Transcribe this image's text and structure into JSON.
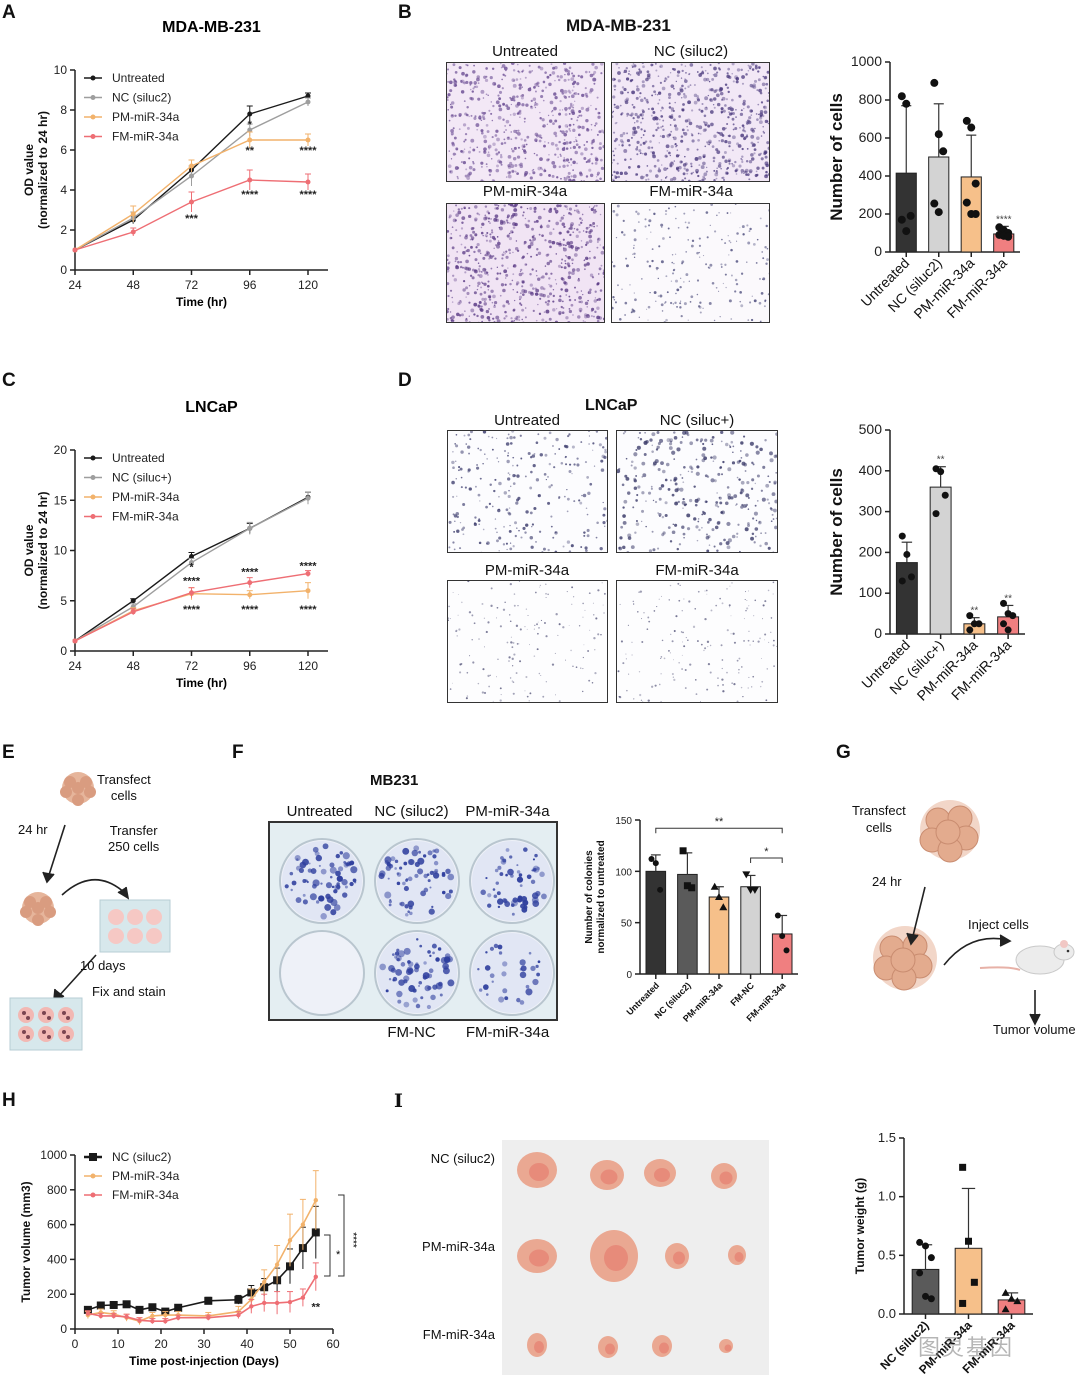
{
  "panels": {
    "A": {
      "letter": "A"
    },
    "B": {
      "letter": "B"
    },
    "C": {
      "letter": "C"
    },
    "D": {
      "letter": "D"
    },
    "E": {
      "letter": "E"
    },
    "F": {
      "letter": "F"
    },
    "G": {
      "letter": "G"
    },
    "H": {
      "letter": "H"
    },
    "I": {
      "letter": "I"
    }
  },
  "colors": {
    "untreated": "#1a1a1a",
    "nc": "#9e9e9e",
    "pm": "#f2b26b",
    "fm": "#ee6e74",
    "bar_untreated": "#333333",
    "bar_nc": "#d3d3d3",
    "bar_nc_dark": "#5a5a5a",
    "bar_pm": "#f6c08a",
    "bar_fm": "#f07f80"
  },
  "images": {
    "B": {
      "title": "MDA-MB-231",
      "labels": [
        "Untreated",
        "NC (siluc2)",
        "PM-miR-34a",
        "FM-miR-34a"
      ]
    },
    "D": {
      "title": "LNCaP",
      "labels": [
        "Untreated",
        "NC (siluc+)",
        "PM-miR-34a",
        "FM-miR-34a"
      ]
    },
    "F": {
      "title": "MB231",
      "top_labels": [
        "Untreated",
        "NC (siluc2)",
        "PM-miR-34a"
      ],
      "bottom_labels": [
        "FM-NC",
        "FM-miR-34a"
      ]
    },
    "I": {
      "row_labels": [
        "NC (siluc2)",
        "PM-miR-34a",
        "FM-miR-34a"
      ]
    }
  },
  "diagrams": {
    "E": {
      "transfect": "Transfect",
      "cells": "cells",
      "time1": "24 hr",
      "transfer1": "Transfer",
      "transfer2": "250 cells",
      "time2": "10 days",
      "fix": "Fix and stain"
    },
    "G": {
      "transfect": "Transfect",
      "cells": "cells",
      "time1": "24 hr",
      "inject": "Inject cells",
      "outcome": "Tumor volume"
    }
  },
  "watermark": "图灵基因",
  "chart_data": [
    {
      "id": "A",
      "type": "line",
      "title": "MDA-MB-231",
      "xlabel": "Time (hr)",
      "ylabel": "OD value (normalized to 24 hr)",
      "x": [
        24,
        48,
        72,
        96,
        120
      ],
      "xticks": [
        "24",
        "48",
        "72",
        "96",
        "120"
      ],
      "ylim": [
        0,
        10
      ],
      "yticks": [
        "0",
        "2",
        "4",
        "6",
        "8",
        "10"
      ],
      "legend_position": "upper-left",
      "series": [
        {
          "name": "Untreated",
          "values": [
            1.0,
            2.5,
            5.0,
            7.8,
            8.7
          ],
          "err": [
            0,
            0.2,
            0.2,
            0.4,
            0.15
          ]
        },
        {
          "name": "NC (siluc2)",
          "values": [
            1.0,
            2.6,
            4.7,
            7.0,
            8.4
          ],
          "err": [
            0,
            0.3,
            0.5,
            0.3,
            0.2
          ]
        },
        {
          "name": "PM-miR-34a",
          "values": [
            1.0,
            2.8,
            5.2,
            6.5,
            6.5
          ],
          "err": [
            0,
            0.4,
            0.3,
            0.4,
            0.3
          ]
        },
        {
          "name": "FM-miR-34a",
          "values": [
            1.0,
            1.9,
            3.4,
            4.5,
            4.4
          ],
          "err": [
            0,
            0.2,
            0.5,
            0.5,
            0.4
          ]
        }
      ],
      "annotations": [
        {
          "x": 96,
          "y": 7.3,
          "text": "*"
        },
        {
          "x": 96,
          "y": 6.0,
          "text": "**"
        },
        {
          "x": 120,
          "y": 6.0,
          "text": "****"
        },
        {
          "x": 72,
          "y": 2.6,
          "text": "***"
        },
        {
          "x": 96,
          "y": 3.8,
          "text": "****"
        },
        {
          "x": 120,
          "y": 3.8,
          "text": "****"
        }
      ]
    },
    {
      "id": "B",
      "type": "bar",
      "xlabel": "",
      "ylabel": "Number of cells",
      "categories": [
        "Untreated",
        "NC (siluc2)",
        "PM-miR-34a",
        "FM-miR-34a"
      ],
      "values": [
        415,
        500,
        395,
        95
      ],
      "err": [
        355,
        280,
        220,
        40
      ],
      "points": [
        [
          820,
          780,
          190,
          170,
          110
        ],
        [
          890,
          620,
          530,
          255,
          210
        ],
        [
          690,
          655,
          360,
          260,
          200,
          200
        ],
        [
          130,
          115,
          100,
          90,
          85,
          80
        ]
      ],
      "ylim": [
        0,
        1000
      ],
      "yticks": [
        "0",
        "200",
        "400",
        "600",
        "800",
        "1000"
      ],
      "annotations": [
        {
          "category": "FM-miR-34a",
          "text": "****"
        }
      ]
    },
    {
      "id": "C",
      "type": "line",
      "title": "LNCaP",
      "xlabel": "Time (hr)",
      "ylabel": "OD value (normalized to 24 hr)",
      "x": [
        24,
        48,
        72,
        96,
        120
      ],
      "xticks": [
        "24",
        "48",
        "72",
        "96",
        "120"
      ],
      "ylim": [
        0,
        20
      ],
      "yticks": [
        "0",
        "5",
        "10",
        "15",
        "20"
      ],
      "legend_position": "upper-left",
      "series": [
        {
          "name": "Untreated",
          "values": [
            1.0,
            5.0,
            9.4,
            12.2,
            15.3
          ],
          "err": [
            0,
            0.2,
            0.4,
            0.5,
            0.5
          ]
        },
        {
          "name": "NC (siluc+)",
          "values": [
            1.0,
            4.4,
            8.8,
            12.2,
            15.2
          ],
          "err": [
            0,
            0.3,
            0.4,
            0.6,
            0.6
          ]
        },
        {
          "name": "PM-miR-34a",
          "values": [
            1.0,
            4.0,
            5.7,
            5.6,
            6.0
          ],
          "err": [
            0,
            0.3,
            0.6,
            0.4,
            0.8
          ]
        },
        {
          "name": "FM-miR-34a",
          "values": [
            1.0,
            3.9,
            5.8,
            6.8,
            7.7
          ],
          "err": [
            0,
            0.3,
            0.5,
            0.5,
            0.3
          ]
        }
      ],
      "annotations": [
        {
          "x": 72,
          "y": 8.4,
          "text": "*"
        },
        {
          "x": 72,
          "y": 7.0,
          "text": "****"
        },
        {
          "x": 72,
          "y": 4.2,
          "text": "****"
        },
        {
          "x": 96,
          "y": 7.9,
          "text": "****"
        },
        {
          "x": 96,
          "y": 4.2,
          "text": "****"
        },
        {
          "x": 120,
          "y": 8.5,
          "text": "****"
        },
        {
          "x": 120,
          "y": 4.2,
          "text": "****"
        }
      ]
    },
    {
      "id": "D",
      "type": "bar",
      "xlabel": "",
      "ylabel": "Number of cells",
      "categories": [
        "Untreated",
        "NC (siluc+)",
        "PM-miR-34a",
        "FM-miR-34a"
      ],
      "values": [
        175,
        360,
        25,
        42
      ],
      "err": [
        50,
        50,
        15,
        28
      ],
      "points": [
        [
          240,
          195,
          140,
          130
        ],
        [
          405,
          398,
          340,
          295
        ],
        [
          45,
          25,
          25,
          10
        ],
        [
          75,
          50,
          45,
          25,
          10
        ]
      ],
      "ylim": [
        0,
        500
      ],
      "yticks": [
        "0",
        "100",
        "200",
        "300",
        "400",
        "500"
      ],
      "annotations": [
        {
          "category": "NC (siluc+)",
          "text": "**"
        },
        {
          "category": "PM-miR-34a",
          "text": "**"
        },
        {
          "category": "FM-miR-34a",
          "text": "**"
        }
      ]
    },
    {
      "id": "F",
      "type": "bar",
      "xlabel": "",
      "ylabel": "Number of colonies normalized to untreated",
      "categories": [
        "Untreated",
        "NC (siluc2)",
        "PM-miR-34a",
        "FM-NC",
        "FM-miR-34a"
      ],
      "values": [
        100,
        97,
        75,
        85,
        39
      ],
      "err": [
        16,
        21,
        10,
        11,
        18
      ],
      "points": [
        [
          112,
          108,
          82
        ],
        [
          120,
          86,
          84
        ],
        [
          85,
          75,
          65
        ],
        [
          97,
          82,
          82
        ],
        [
          57,
          37,
          23
        ]
      ],
      "ylim": [
        0,
        150
      ],
      "yticks": [
        "0",
        "50",
        "100",
        "150"
      ],
      "annotations": [
        {
          "from": "Untreated",
          "to": "FM-miR-34a",
          "text": "**"
        },
        {
          "from": "FM-NC",
          "to": "FM-miR-34a",
          "text": "*"
        }
      ]
    },
    {
      "id": "H",
      "type": "line",
      "xlabel": "Time post-injection (Days)",
      "ylabel": "Tumor volume (mm3)",
      "x": [
        3,
        6,
        9,
        12,
        15,
        18,
        21,
        24,
        31,
        38,
        41,
        44,
        47,
        50,
        53,
        56
      ],
      "xlim": [
        0,
        60
      ],
      "xticks": [
        "0",
        "10",
        "20",
        "30",
        "40",
        "50",
        "60"
      ],
      "ylim": [
        0,
        1000
      ],
      "yticks": [
        "0",
        "200",
        "400",
        "600",
        "800",
        "1000"
      ],
      "legend_position": "upper-left",
      "series": [
        {
          "name": "NC (siluc2)",
          "values": [
            110,
            135,
            138,
            142,
            110,
            125,
            100,
            122,
            162,
            168,
            210,
            240,
            280,
            360,
            465,
            555
          ],
          "err": [
            15,
            15,
            15,
            15,
            15,
            15,
            15,
            15,
            20,
            25,
            40,
            50,
            70,
            100,
            120,
            150
          ]
        },
        {
          "name": "PM-miR-34a",
          "values": [
            80,
            95,
            85,
            65,
            45,
            75,
            80,
            80,
            75,
            100,
            170,
            270,
            370,
            510,
            600,
            740
          ],
          "err": [
            20,
            20,
            20,
            20,
            20,
            20,
            20,
            20,
            20,
            30,
            60,
            70,
            110,
            150,
            145,
            170
          ]
        },
        {
          "name": "FM-miR-34a",
          "values": [
            90,
            75,
            75,
            70,
            50,
            45,
            45,
            65,
            65,
            80,
            130,
            150,
            150,
            155,
            180,
            300
          ],
          "err": [
            15,
            15,
            15,
            15,
            15,
            15,
            15,
            15,
            15,
            20,
            40,
            50,
            65,
            60,
            50,
            80
          ]
        }
      ],
      "annotations": [
        {
          "x": 56,
          "y": 130,
          "text": "**"
        },
        {
          "bracket": [
            "NC (siluc2)",
            "FM-miR-34a"
          ],
          "text": "*"
        },
        {
          "bracket": [
            "PM-miR-34a",
            "FM-miR-34a"
          ],
          "text": "****"
        }
      ]
    },
    {
      "id": "I",
      "type": "bar",
      "xlabel": "",
      "ylabel": "Tumor weight (g)",
      "categories": [
        "NC (siluc2)",
        "PM-miR-34a",
        "FM-miR-34a"
      ],
      "values": [
        0.38,
        0.56,
        0.12
      ],
      "err": [
        0.21,
        0.51,
        0.06
      ],
      "points": [
        [
          0.61,
          0.58,
          0.48,
          0.35,
          0.15,
          0.13
        ],
        [
          1.25,
          0.62,
          0.27,
          0.09
        ],
        [
          0.18,
          0.13,
          0.11,
          0.04
        ]
      ],
      "ylim": [
        0,
        1.5
      ],
      "yticks": [
        "0.0",
        "0.5",
        "1.0",
        "1.5"
      ]
    }
  ]
}
